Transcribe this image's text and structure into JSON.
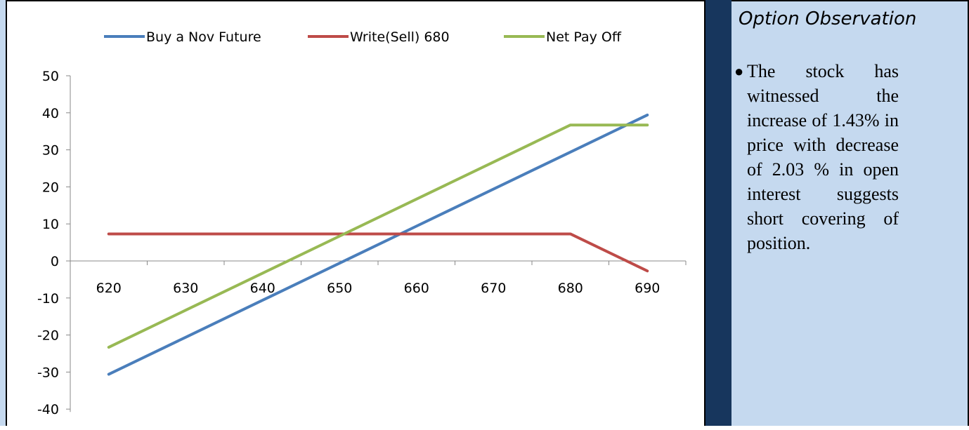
{
  "observation": {
    "title": "Option Observation",
    "bullet_text": "The stock has witnessed the increase of 1.43% in price with decrease of 2.03 % in open interest suggests short covering of position."
  },
  "colors": {
    "series_buy": "#4a7ebb",
    "series_write": "#be4b48",
    "series_net": "#98b954",
    "side_panel_bg": "#c5d9ef",
    "dark_band": "#17365d"
  },
  "chart_data": {
    "type": "line",
    "title": "",
    "xlabel": "",
    "ylabel": "",
    "x": [
      620,
      630,
      640,
      650,
      660,
      670,
      680,
      690
    ],
    "x_tick_labels": [
      "620",
      "630",
      "640",
      "650",
      "660",
      "670",
      "680",
      "690"
    ],
    "y_tick_labels": [
      "50",
      "40",
      "30",
      "20",
      "10",
      "0",
      "-10",
      "-20",
      "-30",
      "-40"
    ],
    "ylim": [
      -40,
      50
    ],
    "grid": false,
    "legend_position": "top",
    "series": [
      {
        "name": "Buy a Nov Future",
        "values": [
          -30.6,
          -20.6,
          -10.6,
          -0.6,
          9.4,
          19.4,
          29.4,
          39.4
        ]
      },
      {
        "name": "Write(Sell) 680",
        "values": [
          7.3,
          7.3,
          7.3,
          7.3,
          7.3,
          7.3,
          7.3,
          -2.7
        ]
      },
      {
        "name": "Net Pay Off",
        "values": [
          -23.3,
          -13.3,
          -3.3,
          6.7,
          16.7,
          26.7,
          36.7,
          36.7
        ]
      }
    ]
  }
}
